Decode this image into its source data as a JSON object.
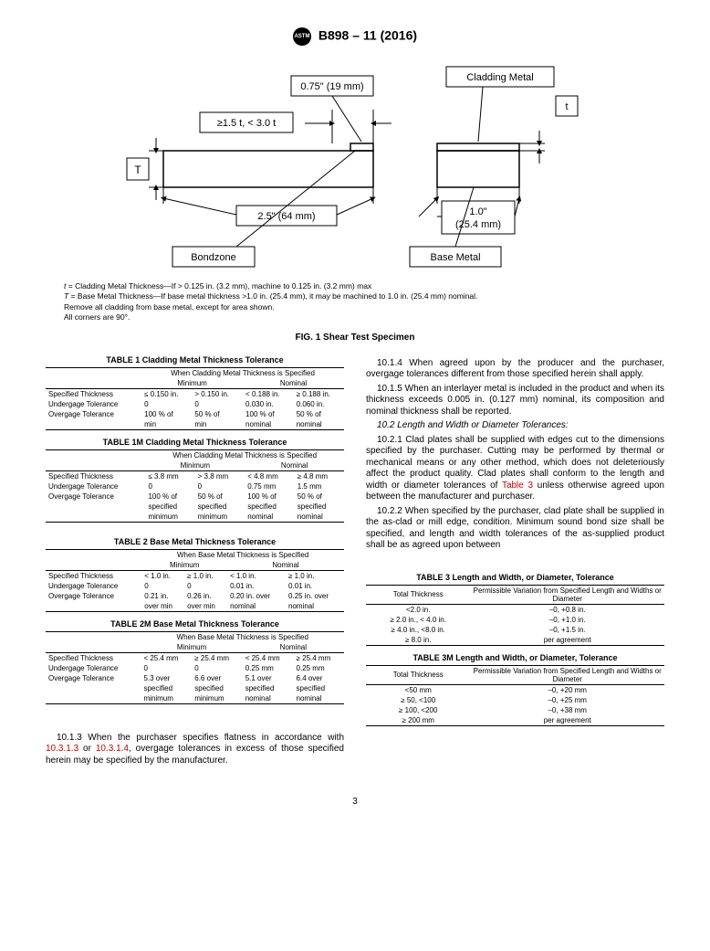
{
  "header": {
    "spec": "B898 – 11 (2016)"
  },
  "figure": {
    "labels": {
      "top1": "0.75\" (19 mm)",
      "topRight": "Cladding Metal",
      "leftCond": "≥1.5 t, < 3.0 t",
      "tBox": "t",
      "TBox": "T",
      "width": "2.5\" (64 mm)",
      "right1": "1.0\"",
      "right2": "(25.4 mm)",
      "bondzone": "Bondzone",
      "baseMetal": "Base Metal"
    },
    "notes": [
      "t = Cladding Metal Thickness—If > 0.125 in. (3.2 mm), machine to 0.125 in. (3.2 mm) max",
      "T = Base Metal Thickness—If base metal thickness >1.0 in. (25.4 mm), it may be machined to 1.0 in. (25.4 mm) nominal.",
      "Remove all cladding from base metal, except for area shown.",
      "All corners are 90°."
    ],
    "title": "FIG. 1 Shear Test Specimen"
  },
  "table1": {
    "title": "TABLE 1 Cladding Metal Thickness Tolerance",
    "head1": "When Cladding Metal Thickness is Specified",
    "minLabel": "Minimum",
    "nomLabel": "Nominal",
    "rowLabels": [
      "Specified Thickness",
      "Undergage Tolerance",
      "Overgage Tolerance"
    ],
    "c": {
      "h": [
        "≤ 0.150 in.",
        "> 0.150 in.",
        "< 0.188 in.",
        "≥ 0.188 in."
      ],
      "r2": [
        "0",
        "0",
        "0.030 in.",
        "0.060 in."
      ],
      "r3a": [
        "100 % of",
        "50 % of",
        "100 % of",
        "50 % of"
      ],
      "r3b": [
        "min",
        "min",
        "nominal",
        "nominal"
      ]
    }
  },
  "table1m": {
    "title": "TABLE 1M   Cladding Metal Thickness Tolerance",
    "head1": "When Cladding Metal Thickness is Specified",
    "minLabel": "Minimum",
    "nomLabel": "Nominal",
    "c": {
      "h": [
        "≤ 3.8 mm",
        "> 3.8 mm",
        "< 4.8 mm",
        "≥ 4.8 mm"
      ],
      "r2": [
        "0",
        "0",
        "0.75 mm",
        "1.5 mm"
      ],
      "r3a": [
        "100 % of",
        "50 % of",
        "100 % of",
        "50 % of"
      ],
      "r3b": [
        "specified",
        "specified",
        "specified",
        "specified"
      ],
      "r3c": [
        "minimum",
        "minimum",
        "nominal",
        "nominal"
      ]
    }
  },
  "table2": {
    "title": "TABLE 2 Base Metal Thickness Tolerance",
    "head1": "When Base Metal Thickness is Specified",
    "minLabel": "Minimum",
    "nomLabel": "Nominal",
    "c": {
      "h": [
        "< 1.0 in.",
        "≥ 1.0 in.",
        "< 1.0 in.",
        "≥ 1.0 in."
      ],
      "r2": [
        "0",
        "0",
        "0.01 in.",
        "0.01 in."
      ],
      "r3a": [
        "0.21 in.",
        "0.26 in.",
        "0.20 in. over",
        "0.25 in. over"
      ],
      "r3b": [
        "over min",
        "over min",
        "nominal",
        "nominal"
      ]
    }
  },
  "table2m": {
    "title": "TABLE 2M   Base Metal Thickness Tolerance",
    "head1": "When Base Metal Thickness is Specified",
    "minLabel": "Minimum",
    "nomLabel": "Nominal",
    "c": {
      "h": [
        "< 25.4 mm",
        "≥ 25.4 mm",
        "< 25.4 mm",
        "≥ 25.4 mm"
      ],
      "r2": [
        "0",
        "0",
        "0.25 mm",
        "0.25 mm"
      ],
      "r3a": [
        "5.3 over",
        "6.6 over",
        "5.1 over",
        "6.4 over"
      ],
      "r3b": [
        "specified",
        "specified",
        "specified",
        "specified"
      ],
      "r3c": [
        "minimum",
        "minimum",
        "nominal",
        "nominal"
      ]
    }
  },
  "bodyLeft": {
    "p1a": "10.1.3 When the purchaser specifies flatness in accordance with ",
    "p1link1": "10.3.1.3",
    "p1b": " or ",
    "p1link2": "10.3.1.4",
    "p1c": ", overgage tolerances in excess of those specified herein may be specified by the manufacturer."
  },
  "bodyRight": {
    "p1": "10.1.4 When agreed upon by the producer and the purchaser, overgage tolerances different from those specified herein shall apply.",
    "p2": "10.1.5 When an interlayer metal is included in the product and when its thickness exceeds 0.005 in. (0.127 mm) nominal, its composition and nominal thickness shall be reported.",
    "p3h": "10.2 Length and Width or Diameter Tolerances:",
    "p4a": "10.2.1 Clad plates shall be supplied with edges cut to the dimensions specified by the purchaser. Cutting may be performed by thermal or mechanical means or any other method, which does not deleteriously affect the product quality. Clad plates shall conform to the length and width or diameter tolerances of ",
    "p4link": "Table 3",
    "p4b": " unless otherwise agreed upon between the manufacturer and purchaser.",
    "p5": "10.2.2 When specified by the purchaser, clad plate shall be supplied in the as-clad or mill edge, condition. Minimum sound bond size shall be specified, and length and width tolerances of the as-supplied product shall be as agreed upon between"
  },
  "table3": {
    "title": "TABLE 3 Length and Width, or Diameter, Tolerance",
    "h1": "Total Thickness",
    "h2": "Permissible Variation from Specified Length and Widths or Diameter",
    "rows": [
      [
        "<2.0 in.",
        "–0, +0.8 in."
      ],
      [
        "≥ 2.0 in., < 4.0 in.",
        "–0, +1.0 in."
      ],
      [
        "≥ 4.0 in., <8.0 in.",
        "–0, +1.5 in."
      ],
      [
        "≥ 8.0 in.",
        "per agreement"
      ]
    ]
  },
  "table3m": {
    "title": "TABLE 3M   Length and Width, or Diameter, Tolerance",
    "h1": "Total Thickness",
    "h2": "Permissible Variation from Specified Length and Widths or Diameter",
    "rows": [
      [
        "<50 mm",
        "–0, +20 mm"
      ],
      [
        "≥ 50, <100",
        "–0, +25 mm"
      ],
      [
        "≥ 100, <200",
        "–0, +38 mm"
      ],
      [
        "≥ 200 mm",
        "per agreement"
      ]
    ]
  },
  "pageNumber": "3"
}
